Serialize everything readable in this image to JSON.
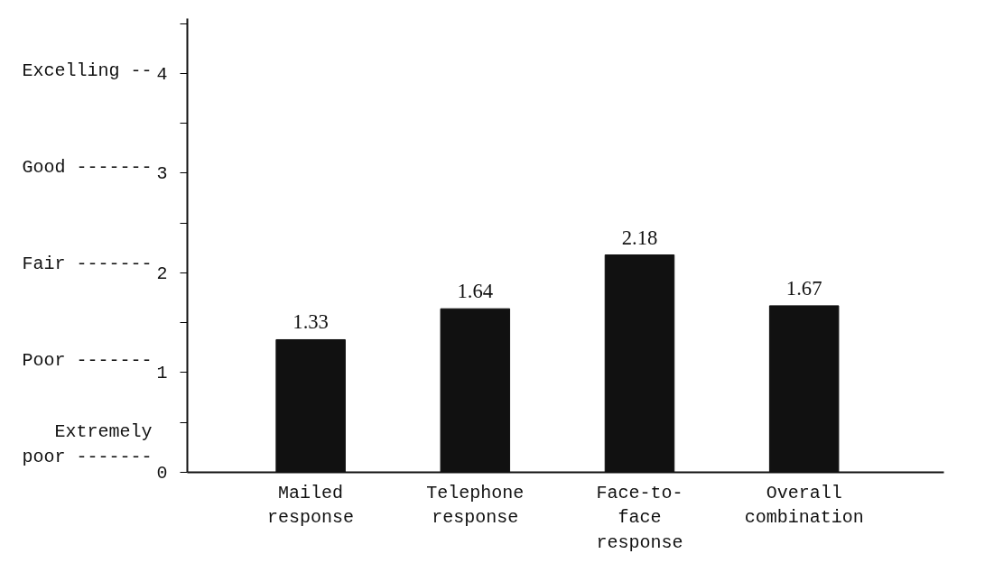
{
  "chart_data": {
    "type": "bar",
    "categories": [
      "Mailed\nresponse",
      "Telephone\nresponse",
      "Face-to-\nface\nresponse",
      "Overall\ncombination"
    ],
    "values": [
      1.33,
      1.64,
      2.18,
      1.67
    ],
    "color": "#111111",
    "data_labels": true,
    "ylim": [
      0,
      4.55
    ],
    "yticks": [
      0,
      {
        "value": 0.5,
        "label": null
      },
      1,
      {
        "value": 1.5,
        "label": null
      },
      2,
      {
        "value": 2.5,
        "label": null
      },
      3,
      {
        "value": 3.5,
        "label": null
      },
      4,
      {
        "value": 4.5,
        "label": null
      }
    ],
    "annotations": [
      "Extremely\npoor -------",
      "Poor -------",
      "Fair -------",
      "Good -------",
      "Excelling --"
    ],
    "grid": false
  }
}
